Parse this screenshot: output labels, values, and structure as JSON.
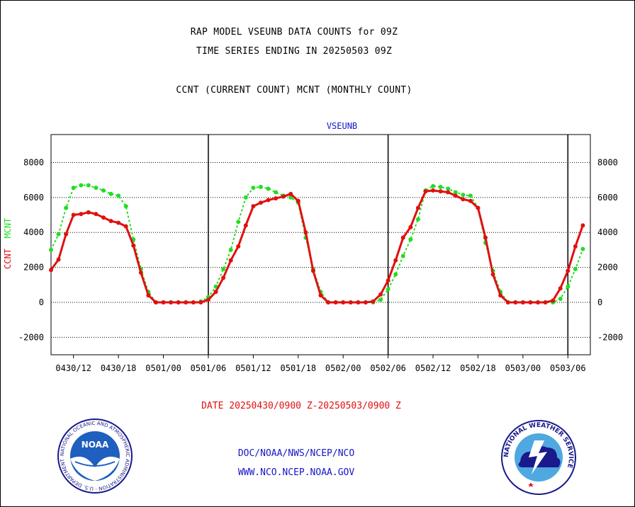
{
  "titles": {
    "line1": "RAP MODEL VSEUNB DATA COUNTS for 09Z",
    "line2": "TIME SERIES ENDING IN 20250503 09Z",
    "line3": "CCNT (CURRENT COUNT) MCNT (MONTHLY COUNT)"
  },
  "footer": {
    "date_range": "DATE 20250430/0900 Z-20250503/0900 Z",
    "org_path": "DOC/NOAA/NWS/NCEP/NCO",
    "url": "WWW.NCO.NCEP.NOAA.GOV"
  },
  "logos": {
    "left": {
      "icon": "noaa-logo",
      "text": "NOAA"
    },
    "right": {
      "icon": "national-weather-service-logo",
      "text": "NATIONAL WEATHER SERVICE"
    }
  },
  "colors": {
    "ccnt": "#e01010",
    "mcnt": "#22dd22",
    "label_blue": "#1515c8"
  },
  "chart_data": {
    "type": "line",
    "title": "VSEUNB",
    "ylabel_ccnt": "CCNT",
    "ylabel_mcnt": "MCNT",
    "ylim": [
      -3000,
      9600
    ],
    "yticks": [
      -2000,
      0,
      2000,
      4000,
      6000,
      8000
    ],
    "ytick_labels": [
      "-2000",
      "0",
      "2000",
      "4000",
      "6000",
      "8000"
    ],
    "x_unit": "hour",
    "xlim": [
      "2025-04-30T09:00Z",
      "2025-05-03T09:00Z"
    ],
    "xticks": [
      "2025-04-30T12:00Z",
      "2025-04-30T18:00Z",
      "2025-05-01T00:00Z",
      "2025-05-01T06:00Z",
      "2025-05-01T12:00Z",
      "2025-05-01T18:00Z",
      "2025-05-02T00:00Z",
      "2025-05-02T06:00Z",
      "2025-05-02T12:00Z",
      "2025-05-02T18:00Z",
      "2025-05-03T00:00Z",
      "2025-05-03T06:00Z"
    ],
    "xtick_labels": [
      "0430/12",
      "0430/18",
      "0501/00",
      "0501/06",
      "0501/12",
      "0501/18",
      "0502/00",
      "0502/06",
      "0502/12",
      "0502/18",
      "0503/00",
      "0503/06"
    ],
    "vertical_lines": [
      "2025-05-01T06:00Z",
      "2025-05-02T06:00Z",
      "2025-05-03T06:00Z"
    ],
    "grid": "horizontal dotted",
    "series": [
      {
        "name": "CCNT",
        "color": "#e01010",
        "values": [
          1850,
          2450,
          3900,
          5000,
          5050,
          5150,
          5050,
          4850,
          4650,
          4550,
          4350,
          3250,
          1700,
          400,
          0,
          0,
          0,
          0,
          0,
          0,
          0,
          150,
          600,
          1400,
          2400,
          3200,
          4400,
          5500,
          5700,
          5850,
          5950,
          6050,
          6200,
          5800,
          4000,
          1800,
          400,
          0,
          0,
          0,
          0,
          0,
          0,
          50,
          450,
          1250,
          2400,
          3700,
          4300,
          5400,
          6350,
          6400,
          6350,
          6300,
          6100,
          5900,
          5800,
          5400,
          3700,
          1600,
          400,
          0,
          0,
          0,
          0,
          0,
          0,
          100,
          800,
          1800,
          3200,
          4400
        ]
      },
      {
        "name": "MCNT",
        "color": "#22dd22",
        "values": [
          3000,
          3900,
          5400,
          6550,
          6700,
          6700,
          6550,
          6400,
          6200,
          6100,
          5500,
          3600,
          1900,
          600,
          0,
          0,
          0,
          0,
          0,
          0,
          50,
          300,
          900,
          1900,
          3000,
          4600,
          6000,
          6550,
          6600,
          6500,
          6300,
          6100,
          6000,
          5700,
          3700,
          1900,
          600,
          0,
          0,
          0,
          0,
          0,
          0,
          0,
          150,
          750,
          1600,
          2650,
          3600,
          4750,
          6400,
          6650,
          6600,
          6500,
          6300,
          6150,
          6100,
          5400,
          3400,
          1800,
          600,
          0,
          0,
          0,
          0,
          0,
          0,
          0,
          200,
          900,
          1900,
          3050
        ]
      }
    ]
  }
}
